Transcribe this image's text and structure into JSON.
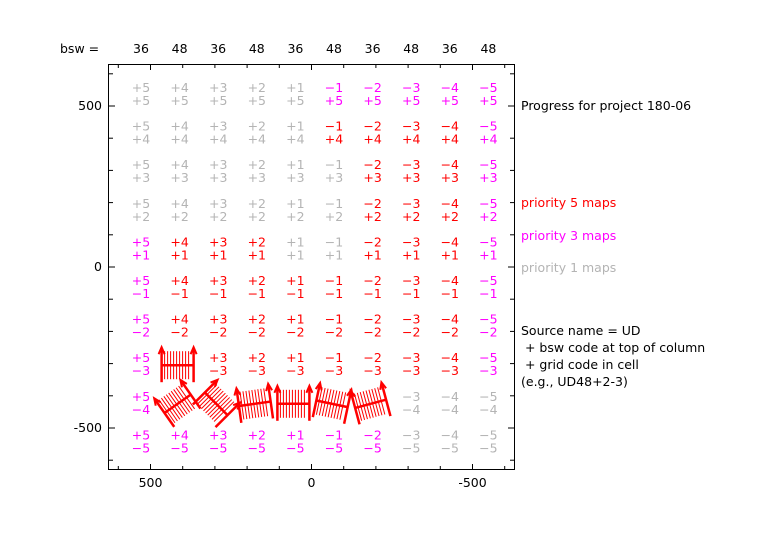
{
  "header": {
    "bsw_label": "bsw =",
    "bsw_codes": [
      "36",
      "48",
      "36",
      "48",
      "36",
      "48",
      "36",
      "48",
      "36",
      "48"
    ]
  },
  "legend": {
    "title": "Progress for project 180-06",
    "items": [
      {
        "label": "priority 5 maps",
        "color": "#ff0000"
      },
      {
        "label": "priority 3 maps",
        "color": "#ff00ff"
      },
      {
        "label": "priority 1 maps",
        "color": "#b4b4b4"
      }
    ],
    "source_lines": [
      "Source name = UD",
      " + bsw code at top of column",
      " + grid code in cell",
      "(e.g., UD48+2-3)"
    ]
  },
  "chart_data": {
    "type": "table",
    "x_ticks": [
      {
        "value": 500,
        "label": "500"
      },
      {
        "value": 0,
        "label": "0"
      },
      {
        "value": -500,
        "label": "-500"
      }
    ],
    "y_ticks": [
      {
        "value": 500,
        "label": "500"
      },
      {
        "value": 0,
        "label": "0"
      },
      {
        "value": -500,
        "label": "-500"
      }
    ],
    "xlim": [
      630,
      -630
    ],
    "ylim": [
      -630,
      630
    ],
    "column_codes": [
      "+5",
      "+4",
      "+3",
      "+2",
      "+1",
      "−1",
      "−2",
      "−3",
      "−4",
      "−5"
    ],
    "row_codes": [
      "+5",
      "+4",
      "+3",
      "+2",
      "+1",
      "−1",
      "−2",
      "−3",
      "−4",
      "−5"
    ],
    "priority_colors": {
      "5": "#ff0000",
      "3": "#ff00ff",
      "1": "#b4b4b4"
    },
    "priority_grid": [
      [
        1,
        1,
        1,
        1,
        1,
        3,
        3,
        3,
        3,
        3
      ],
      [
        1,
        1,
        1,
        1,
        1,
        5,
        5,
        5,
        5,
        3
      ],
      [
        1,
        1,
        1,
        1,
        1,
        1,
        5,
        5,
        5,
        3
      ],
      [
        1,
        1,
        1,
        1,
        1,
        1,
        5,
        5,
        5,
        3
      ],
      [
        3,
        5,
        5,
        5,
        1,
        1,
        5,
        5,
        5,
        3
      ],
      [
        3,
        5,
        5,
        5,
        5,
        5,
        5,
        5,
        5,
        3
      ],
      [
        3,
        5,
        5,
        5,
        5,
        5,
        5,
        5,
        5,
        3
      ],
      [
        3,
        0,
        5,
        5,
        5,
        5,
        5,
        5,
        5,
        3
      ],
      [
        3,
        0,
        0,
        0,
        0,
        0,
        0,
        1,
        1,
        1
      ],
      [
        3,
        3,
        3,
        3,
        3,
        3,
        3,
        1,
        1,
        1
      ]
    ],
    "completed_maps": [
      {
        "row": 7,
        "col": 1,
        "rotation": 0
      },
      {
        "row": 8,
        "col": 1,
        "rotation": -35
      },
      {
        "row": 8,
        "col": 2,
        "rotation": 45
      },
      {
        "row": 8,
        "col": 3,
        "rotation": -8
      },
      {
        "row": 8,
        "col": 4,
        "rotation": 0
      },
      {
        "row": 8,
        "col": 5,
        "rotation": 12
      },
      {
        "row": 8,
        "col": 6,
        "rotation": -15
      }
    ]
  }
}
